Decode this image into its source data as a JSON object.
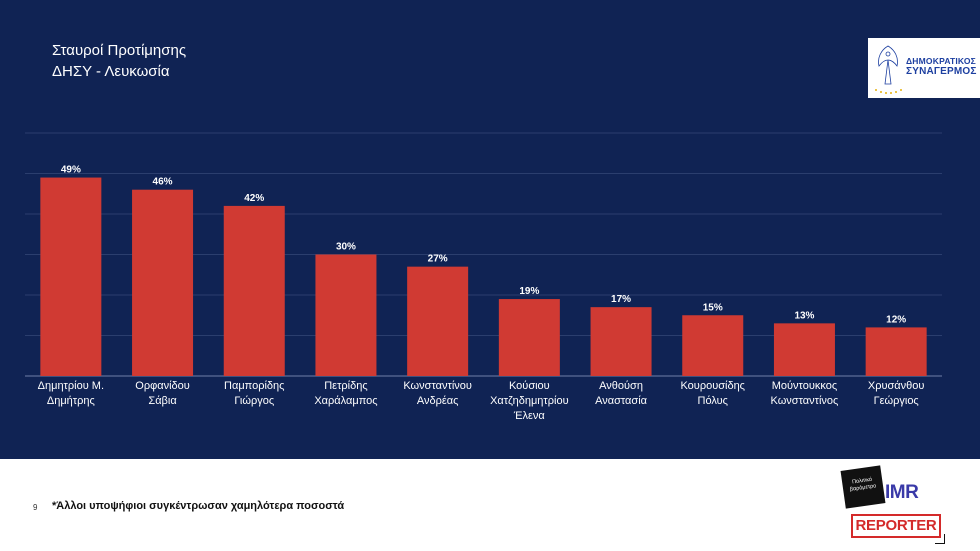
{
  "title": {
    "line1": "Σταυροί Προτίμησης",
    "line2": "ΔΗΣΥ - Λευκωσία"
  },
  "logo": {
    "line1": "ΔΗΜΟΚΡΑΤΙΚΟΣ",
    "line2": "ΣΥΝΑΓΕΡΜΟΣ"
  },
  "colors": {
    "background": "#102354",
    "bar": "#d03a33",
    "text": "#ffffff"
  },
  "chart_data": {
    "type": "bar",
    "categories": [
      [
        "Δημητρίου Μ.",
        "Δημήτρης"
      ],
      [
        "Ορφανίδου",
        "Σάβια"
      ],
      [
        "Παμπορίδης",
        "Γιώργος"
      ],
      [
        "Πετρίδης",
        "Χαράλαμπος"
      ],
      [
        "Κωνσταντίνου",
        "Ανδρέας"
      ],
      [
        "Κούσιου",
        "Χατζηδημητρίου",
        "Έλενα"
      ],
      [
        "Ανθούση",
        "Αναστασία"
      ],
      [
        "Κουρουσίδης",
        "Πόλυς"
      ],
      [
        "Μούντουκκος",
        "Κωνσταντίνος"
      ],
      [
        "Χρυσάνθου",
        "Γεώργιος"
      ]
    ],
    "values": [
      49,
      46,
      42,
      30,
      27,
      19,
      17,
      15,
      13,
      12
    ],
    "value_labels": [
      "49%",
      "46%",
      "42%",
      "30%",
      "27%",
      "19%",
      "17%",
      "15%",
      "13%",
      "12%"
    ],
    "unit": "%",
    "ylim": [
      0,
      60
    ],
    "grid": true
  },
  "footer": {
    "page_number": "9",
    "note": "*Άλλοι υποψήφιοι συγκέντρωσαν χαμηλότερα ποσοστά"
  },
  "badges": {
    "politiko": [
      "Πολιτικό",
      "βαρόμετρο"
    ],
    "imr": "IMR",
    "reporter": "REPORTER"
  }
}
